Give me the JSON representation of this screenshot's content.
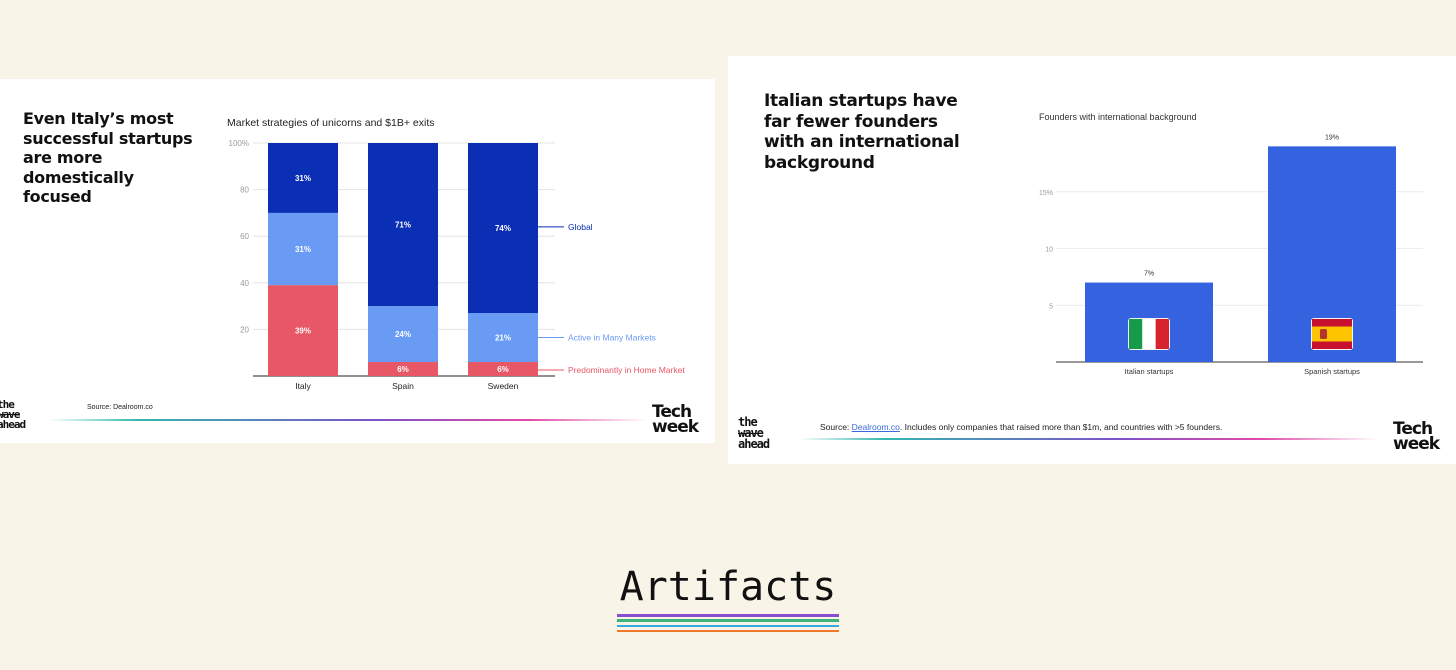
{
  "slides": [
    {
      "headline": "Even Italy’s most successful startups are more domestically focused",
      "source_label": "Source:",
      "source_text": "Dealroom.co",
      "logo_left": [
        "the",
        "wave",
        "ahead"
      ],
      "logo_right": [
        "Tech",
        "week"
      ]
    },
    {
      "headline": "Italian startups have far fewer founders with an international background",
      "source_label": "Source:",
      "source_link": "Dealroom.co",
      "source_text": ". Includes only companies that raised more than $1m, and countries with >5 founders.",
      "logo_left": [
        "the",
        "wave",
        "ahead"
      ],
      "logo_right": [
        "Tech",
        "week"
      ]
    }
  ],
  "chart_data": [
    {
      "type": "bar",
      "stacked": true,
      "title": "Market strategies of unicorns and $1B+ exits",
      "categories": [
        "Italy",
        "Spain",
        "Sweden"
      ],
      "series": [
        {
          "name": "Predominantly in Home Market",
          "values": [
            39,
            6,
            6
          ],
          "labels": [
            "39%",
            "6%",
            "6%"
          ],
          "color": "#e85765"
        },
        {
          "name": "Active in Many Markets",
          "values": [
            31,
            24,
            21
          ],
          "labels": [
            "31%",
            "24%",
            "21%"
          ],
          "color": "#6a9bf4"
        },
        {
          "name": "Global",
          "values": [
            31,
            71,
            74
          ],
          "labels": [
            "31%",
            "71%",
            "74%"
          ],
          "color": "#0a2eb4"
        }
      ],
      "yticks": [
        "20",
        "40",
        "60",
        "80",
        "100%"
      ],
      "ylim": [
        0,
        100
      ],
      "legend": "right, inline labels",
      "grid": true
    },
    {
      "type": "bar",
      "title": "Founders with international background",
      "categories": [
        "Italian startups",
        "Spanish startups"
      ],
      "values": [
        7,
        19
      ],
      "data_labels": [
        "7%",
        "19%"
      ],
      "yticks": [
        "5",
        "10",
        "15%"
      ],
      "ylim": [
        0,
        20
      ],
      "color": "#3563e0",
      "icons": [
        "italy-flag-icon",
        "spain-flag-icon"
      ],
      "grid": true
    }
  ],
  "footer": {
    "heading": "Artifacts",
    "stripe_colors": [
      "#8a4fd0",
      "#3fb37a",
      "#3aa8e0",
      "#f07a2c"
    ]
  },
  "colors": {
    "background": "#f8f4e8",
    "slide": "#ffffff"
  }
}
